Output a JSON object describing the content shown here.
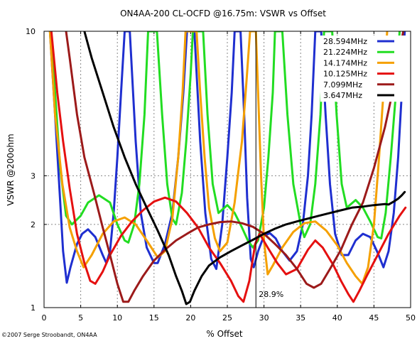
{
  "chart_data": {
    "type": "line",
    "title": "ON4AA-200 CL-OCFD @16.75m: VSWR vs Offset",
    "xlabel": "% Offset",
    "ylabel": "VSWR @200ohm",
    "xlim": [
      0,
      50
    ],
    "ylim": [
      1,
      10
    ],
    "yscale": "log",
    "grid": true,
    "legend_position": "top-right",
    "x_ticks": [
      "0",
      "5",
      "10",
      "15",
      "20",
      "25",
      "30",
      "35",
      "40",
      "45",
      "50"
    ],
    "y_ticks": [
      "1",
      "2",
      "3",
      "10"
    ],
    "marker": {
      "x": 28.9,
      "label": "28.9%"
    },
    "copyright": "©2007 Serge Stroobandt, ON4AA",
    "series": [
      {
        "name": "28.594MHz",
        "color": "#1f2fd0",
        "points": [
          [
            0.8,
            10
          ],
          [
            1.5,
            5
          ],
          [
            2,
            3
          ],
          [
            2.6,
            1.6
          ],
          [
            3.1,
            1.23
          ],
          [
            3.6,
            1.4
          ],
          [
            4.5,
            1.7
          ],
          [
            5.2,
            1.85
          ],
          [
            6,
            1.92
          ],
          [
            7,
            1.8
          ],
          [
            8,
            1.55
          ],
          [
            8.5,
            1.45
          ],
          [
            9,
            1.6
          ],
          [
            9.5,
            2.2
          ],
          [
            10,
            3.5
          ],
          [
            10.5,
            6
          ],
          [
            11,
            10
          ],
          [
            11.7,
            10
          ],
          [
            12.5,
            4
          ],
          [
            13.2,
            2.2
          ],
          [
            14,
            1.65
          ],
          [
            15,
            1.45
          ],
          [
            15.5,
            1.45
          ],
          [
            16.5,
            1.7
          ],
          [
            17.5,
            2.2
          ],
          [
            18.3,
            3.5
          ],
          [
            19,
            6
          ],
          [
            19.5,
            10
          ],
          [
            20.5,
            10
          ],
          [
            21.3,
            4
          ],
          [
            22,
            2.2
          ],
          [
            22.8,
            1.5
          ],
          [
            23.5,
            1.38
          ],
          [
            24.3,
            2
          ],
          [
            25,
            3.5
          ],
          [
            25.6,
            6
          ],
          [
            26,
            10
          ],
          [
            26.8,
            10
          ],
          [
            27.3,
            5
          ],
          [
            27.7,
            2.5
          ],
          [
            28.2,
            1.5
          ],
          [
            28.6,
            1.4
          ],
          [
            29.2,
            1.6
          ],
          [
            30,
            1.82
          ],
          [
            30.8,
            1.86
          ],
          [
            31.6,
            1.78
          ],
          [
            32.5,
            1.6
          ],
          [
            33.5,
            1.48
          ],
          [
            34.5,
            1.6
          ],
          [
            35.3,
            2
          ],
          [
            36,
            3
          ],
          [
            36.5,
            5
          ],
          [
            37,
            10
          ],
          [
            37.8,
            10
          ],
          [
            38.4,
            5
          ],
          [
            39,
            2.8
          ],
          [
            39.7,
            1.85
          ],
          [
            40.6,
            1.55
          ],
          [
            41.5,
            1.55
          ],
          [
            42.5,
            1.75
          ],
          [
            43.5,
            1.85
          ],
          [
            44.5,
            1.8
          ],
          [
            45.5,
            1.58
          ],
          [
            46.3,
            1.4
          ],
          [
            47,
            1.6
          ],
          [
            47.7,
            2.2
          ],
          [
            48.3,
            3.5
          ],
          [
            48.8,
            6
          ],
          [
            49.2,
            10
          ]
        ]
      },
      {
        "name": "21.224MHz",
        "color": "#22dd22",
        "points": [
          [
            0.9,
            10
          ],
          [
            1.5,
            6
          ],
          [
            2.2,
            3.2
          ],
          [
            3,
            2.15
          ],
          [
            3.8,
            2
          ],
          [
            5,
            2.15
          ],
          [
            6,
            2.4
          ],
          [
            7.5,
            2.55
          ],
          [
            9,
            2.4
          ],
          [
            10,
            2
          ],
          [
            11,
            1.75
          ],
          [
            11.5,
            1.72
          ],
          [
            12.3,
            2
          ],
          [
            13,
            2.8
          ],
          [
            13.7,
            5
          ],
          [
            14.2,
            10
          ],
          [
            15.4,
            10
          ],
          [
            16.1,
            5
          ],
          [
            16.8,
            2.8
          ],
          [
            17.5,
            2.1
          ],
          [
            18,
            2
          ],
          [
            18.8,
            2.6
          ],
          [
            19.4,
            4
          ],
          [
            20,
            7
          ],
          [
            20.3,
            10
          ],
          [
            21.7,
            10
          ],
          [
            22.3,
            5
          ],
          [
            23,
            2.8
          ],
          [
            23.8,
            2.2
          ],
          [
            25,
            2.35
          ],
          [
            26,
            2.2
          ],
          [
            27,
            1.95
          ],
          [
            27.8,
            1.75
          ],
          [
            28.5,
            1.65
          ],
          [
            29.2,
            1.75
          ],
          [
            30,
            2.3
          ],
          [
            30.6,
            3.5
          ],
          [
            31.2,
            6
          ],
          [
            31.5,
            10
          ],
          [
            32.5,
            10
          ],
          [
            33.2,
            5
          ],
          [
            34,
            2.8
          ],
          [
            35,
            2
          ],
          [
            35.5,
            1.8
          ],
          [
            36.3,
            2
          ],
          [
            37,
            2.8
          ],
          [
            37.7,
            5
          ],
          [
            38.2,
            10
          ],
          [
            39.3,
            10
          ],
          [
            39.9,
            5
          ],
          [
            40.6,
            2.8
          ],
          [
            41.3,
            2.3
          ],
          [
            42.5,
            2.45
          ],
          [
            43.5,
            2.3
          ],
          [
            44.5,
            2.05
          ],
          [
            45.5,
            1.8
          ],
          [
            46,
            1.78
          ],
          [
            46.6,
            2.2
          ],
          [
            47.3,
            3.5
          ],
          [
            48,
            6
          ],
          [
            48.5,
            10
          ]
        ]
      },
      {
        "name": "14.174MHz",
        "color": "#f5a000",
        "points": [
          [
            0.8,
            10
          ],
          [
            1.5,
            5
          ],
          [
            2.5,
            2.8
          ],
          [
            3.5,
            1.95
          ],
          [
            4.5,
            1.6
          ],
          [
            5.4,
            1.4
          ],
          [
            6.5,
            1.55
          ],
          [
            8,
            1.85
          ],
          [
            9.5,
            2.05
          ],
          [
            11,
            2.12
          ],
          [
            12.5,
            2
          ],
          [
            14,
            1.75
          ],
          [
            15.5,
            1.52
          ],
          [
            16.5,
            1.6
          ],
          [
            17.5,
            2.1
          ],
          [
            18.3,
            3.5
          ],
          [
            18.9,
            6
          ],
          [
            19.3,
            10
          ],
          [
            20.8,
            10
          ],
          [
            21.3,
            6
          ],
          [
            21.9,
            3.5
          ],
          [
            22.5,
            2.3
          ],
          [
            23.3,
            1.78
          ],
          [
            24,
            1.6
          ],
          [
            25,
            1.72
          ],
          [
            26,
            2.4
          ],
          [
            27,
            4
          ],
          [
            27.6,
            6.5
          ],
          [
            28.1,
            10
          ],
          [
            28.9,
            10
          ],
          [
            29.2,
            6
          ],
          [
            29.6,
            3
          ],
          [
            30,
            1.75
          ],
          [
            30.5,
            1.32
          ],
          [
            31.2,
            1.42
          ],
          [
            32.5,
            1.65
          ],
          [
            34,
            1.88
          ],
          [
            35.5,
            2.02
          ],
          [
            37,
            2.05
          ],
          [
            38.5,
            1.9
          ],
          [
            40,
            1.68
          ],
          [
            41.3,
            1.45
          ],
          [
            42.5,
            1.3
          ],
          [
            43.4,
            1.22
          ],
          [
            44.2,
            1.4
          ],
          [
            45,
            2
          ],
          [
            45.7,
            3.5
          ],
          [
            46.3,
            6
          ],
          [
            46.8,
            10
          ]
        ]
      },
      {
        "name": "10.125MHz",
        "color": "#e51010",
        "points": [
          [
            1,
            10
          ],
          [
            1.8,
            6
          ],
          [
            2.6,
            4
          ],
          [
            3.5,
            2.7
          ],
          [
            4.5,
            1.85
          ],
          [
            5.5,
            1.45
          ],
          [
            6.3,
            1.25
          ],
          [
            7,
            1.22
          ],
          [
            8,
            1.35
          ],
          [
            9,
            1.55
          ],
          [
            10.5,
            1.82
          ],
          [
            12,
            2.05
          ],
          [
            13.5,
            2.25
          ],
          [
            15,
            2.42
          ],
          [
            16.5,
            2.5
          ],
          [
            18,
            2.42
          ],
          [
            19.5,
            2.2
          ],
          [
            21,
            1.95
          ],
          [
            22.5,
            1.65
          ],
          [
            24,
            1.45
          ],
          [
            25.5,
            1.25
          ],
          [
            26.5,
            1.1
          ],
          [
            27.2,
            1.05
          ],
          [
            28,
            1.25
          ],
          [
            28.8,
            1.7
          ],
          [
            29.4,
            1.85
          ],
          [
            30.5,
            1.65
          ],
          [
            31.8,
            1.45
          ],
          [
            33,
            1.32
          ],
          [
            34.5,
            1.38
          ],
          [
            36,
            1.62
          ],
          [
            37,
            1.75
          ],
          [
            38,
            1.65
          ],
          [
            39.5,
            1.42
          ],
          [
            40.5,
            1.25
          ],
          [
            41.5,
            1.12
          ],
          [
            42.2,
            1.05
          ],
          [
            43,
            1.15
          ],
          [
            44,
            1.3
          ],
          [
            45.5,
            1.55
          ],
          [
            47,
            1.85
          ],
          [
            48.5,
            2.15
          ],
          [
            49.3,
            2.3
          ]
        ]
      },
      {
        "name": "7.099MHz",
        "color": "#9c1a1a",
        "points": [
          [
            3,
            10
          ],
          [
            3.5,
            8
          ],
          [
            4.5,
            5
          ],
          [
            5.5,
            3.5
          ],
          [
            6.8,
            2.6
          ],
          [
            8,
            1.95
          ],
          [
            9,
            1.55
          ],
          [
            10,
            1.22
          ],
          [
            10.8,
            1.05
          ],
          [
            11.5,
            1.05
          ],
          [
            12.3,
            1.15
          ],
          [
            13.5,
            1.3
          ],
          [
            15,
            1.48
          ],
          [
            16.5,
            1.62
          ],
          [
            18,
            1.75
          ],
          [
            19.5,
            1.85
          ],
          [
            21,
            1.95
          ],
          [
            22.5,
            2
          ],
          [
            24,
            2.04
          ],
          [
            25.5,
            2.05
          ],
          [
            27,
            2.02
          ],
          [
            28.5,
            1.96
          ],
          [
            30,
            1.85
          ],
          [
            31.5,
            1.7
          ],
          [
            33,
            1.55
          ],
          [
            34.5,
            1.38
          ],
          [
            35.8,
            1.22
          ],
          [
            36.8,
            1.18
          ],
          [
            37.8,
            1.22
          ],
          [
            39,
            1.38
          ],
          [
            40.5,
            1.62
          ],
          [
            42,
            2
          ],
          [
            43.5,
            2.4
          ],
          [
            45,
            3.2
          ],
          [
            46.5,
            4.5
          ],
          [
            47.8,
            6.5
          ],
          [
            48.5,
            8.5
          ],
          [
            49,
            10
          ]
        ]
      },
      {
        "name": "3.647MHz",
        "color": "#000000",
        "points": [
          [
            5.5,
            10
          ],
          [
            6.5,
            8
          ],
          [
            8,
            6
          ],
          [
            9.5,
            4.5
          ],
          [
            11,
            3.5
          ],
          [
            12.5,
            2.8
          ],
          [
            14,
            2.3
          ],
          [
            15.5,
            1.9
          ],
          [
            17,
            1.55
          ],
          [
            18,
            1.3
          ],
          [
            18.8,
            1.15
          ],
          [
            19.4,
            1.03
          ],
          [
            19.9,
            1.05
          ],
          [
            20.5,
            1.15
          ],
          [
            21.5,
            1.3
          ],
          [
            22.5,
            1.42
          ],
          [
            24,
            1.52
          ],
          [
            25.5,
            1.6
          ],
          [
            27,
            1.68
          ],
          [
            28.5,
            1.76
          ],
          [
            30,
            1.85
          ],
          [
            31.5,
            1.93
          ],
          [
            33,
            2
          ],
          [
            34.5,
            2.05
          ],
          [
            36,
            2.1
          ],
          [
            37.5,
            2.15
          ],
          [
            39,
            2.2
          ],
          [
            40.5,
            2.25
          ],
          [
            42,
            2.3
          ],
          [
            43.5,
            2.32
          ],
          [
            45,
            2.35
          ],
          [
            46.5,
            2.37
          ],
          [
            47,
            2.36
          ],
          [
            47.7,
            2.42
          ],
          [
            48.3,
            2.48
          ],
          [
            48.8,
            2.55
          ],
          [
            49.2,
            2.62
          ]
        ]
      }
    ]
  }
}
